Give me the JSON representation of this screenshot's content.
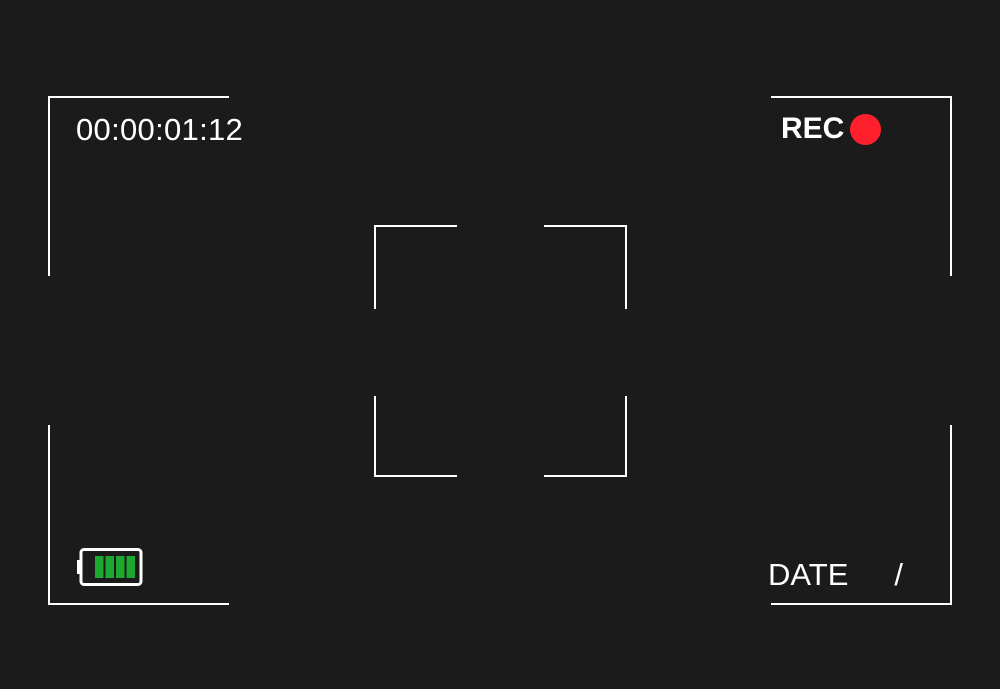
{
  "viewfinder": {
    "timecode": "00:00:01:12",
    "recording": {
      "label": "REC",
      "indicator_color": "#ff1f2d"
    },
    "battery": {
      "icon": "battery-icon",
      "level_bars_filled": 4,
      "level_bars_total": 4,
      "fill_color": "#1fa82f",
      "outline_color": "#ffffff"
    },
    "date": {
      "label": "DATE",
      "separator": "/"
    },
    "colors": {
      "background": "#1b1b1b",
      "frame_lines": "#ffffff"
    }
  }
}
